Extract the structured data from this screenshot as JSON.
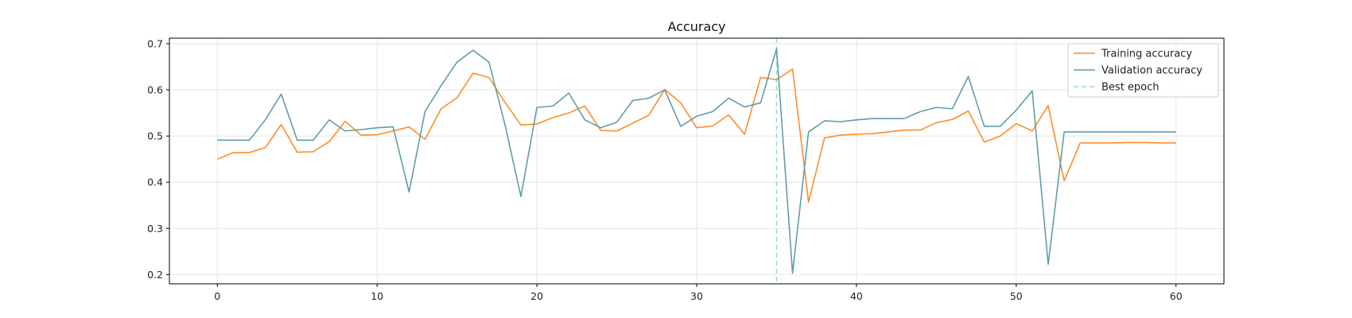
{
  "chart_data": {
    "type": "line",
    "title": "Accuracy",
    "xlabel": "",
    "ylabel": "",
    "xlim": [
      -3,
      63
    ],
    "ylim": [
      0.18,
      0.712
    ],
    "xticks": [
      0,
      10,
      20,
      30,
      40,
      50,
      60
    ],
    "yticks": [
      0.2,
      0.3,
      0.4,
      0.5,
      0.6,
      0.7
    ],
    "grid": true,
    "legend_position": "top-right",
    "x": [
      0,
      1,
      2,
      3,
      4,
      5,
      6,
      7,
      8,
      9,
      10,
      11,
      12,
      13,
      14,
      15,
      16,
      17,
      18,
      19,
      20,
      21,
      22,
      23,
      24,
      25,
      26,
      27,
      28,
      29,
      30,
      31,
      32,
      33,
      34,
      35,
      36,
      37,
      38,
      39,
      40,
      41,
      42,
      43,
      44,
      45,
      46,
      47,
      48,
      49,
      50,
      51,
      52,
      53,
      54,
      55,
      56,
      57,
      58,
      59,
      60
    ],
    "series": [
      {
        "name": "Training accuracy",
        "color": "#ff8c2a",
        "values": [
          0.45,
          0.464,
          0.464,
          0.475,
          0.525,
          0.465,
          0.466,
          0.488,
          0.532,
          0.502,
          0.503,
          0.511,
          0.52,
          0.493,
          0.559,
          0.583,
          0.636,
          0.627,
          0.573,
          0.524,
          0.526,
          0.54,
          0.55,
          0.565,
          0.512,
          0.511,
          0.528,
          0.545,
          0.601,
          0.572,
          0.518,
          0.522,
          0.546,
          0.504,
          0.627,
          0.622,
          0.645,
          0.357,
          0.496,
          0.502,
          0.504,
          0.505,
          0.509,
          0.513,
          0.513,
          0.529,
          0.536,
          0.554,
          0.487,
          0.5,
          0.527,
          0.511,
          0.566,
          0.403,
          0.485,
          0.485,
          0.485,
          0.486,
          0.486,
          0.485,
          0.485
        ]
      },
      {
        "name": "Validation accuracy",
        "color": "#5f9ea8",
        "values": [
          0.491,
          0.491,
          0.491,
          0.535,
          0.591,
          0.491,
          0.491,
          0.535,
          0.511,
          0.514,
          0.518,
          0.52,
          0.379,
          0.553,
          0.609,
          0.66,
          0.686,
          0.66,
          0.525,
          0.369,
          0.562,
          0.565,
          0.593,
          0.535,
          0.518,
          0.53,
          0.577,
          0.582,
          0.6,
          0.521,
          0.543,
          0.553,
          0.582,
          0.563,
          0.572,
          0.689,
          0.203,
          0.509,
          0.533,
          0.531,
          0.535,
          0.538,
          0.538,
          0.538,
          0.553,
          0.562,
          0.559,
          0.629,
          0.521,
          0.521,
          0.556,
          0.598,
          0.222,
          0.509,
          0.509,
          0.509,
          0.509,
          0.509,
          0.509,
          0.509,
          0.509
        ]
      }
    ],
    "best_epoch": {
      "name": "Best epoch",
      "x": 35,
      "color": "#9fd8cf"
    },
    "colors": {
      "grid": "#e6e6e6",
      "axis": "#000000"
    }
  }
}
